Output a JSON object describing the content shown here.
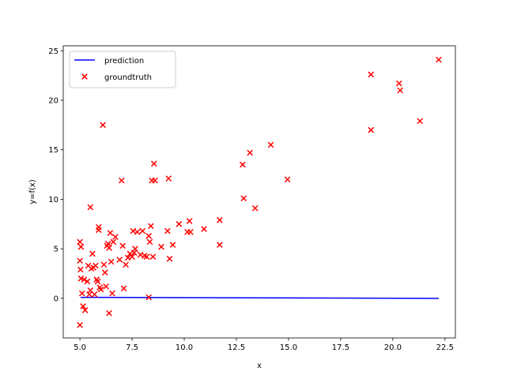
{
  "chart_data": {
    "type": "scatter",
    "title": "",
    "xlabel": "x",
    "ylabel": "y=f(x)",
    "xlim": [
      4.2,
      23.0
    ],
    "ylim": [
      -4.0,
      25.5
    ],
    "xticks": [
      5.0,
      7.5,
      10.0,
      12.5,
      15.0,
      17.5,
      20.0,
      22.5
    ],
    "xtick_labels": [
      "5.0",
      "7.5",
      "10.0",
      "12.5",
      "15.0",
      "17.5",
      "20.0",
      "22.5"
    ],
    "yticks": [
      0,
      5,
      10,
      15,
      20,
      25
    ],
    "ytick_labels": [
      "0",
      "5",
      "10",
      "15",
      "20",
      "25"
    ],
    "grid": false,
    "legend_position": "top-left",
    "series": [
      {
        "name": "prediction",
        "kind": "line",
        "color": "#0000ff",
        "x": [
          5.03,
          22.2
        ],
        "y": [
          0.1,
          0.0
        ]
      },
      {
        "name": "groundtruth",
        "kind": "scatter",
        "marker": "x",
        "color": "#ff0000",
        "points": [
          [
            5.0,
            5.7
          ],
          [
            5.05,
            5.2
          ],
          [
            5.0,
            3.8
          ],
          [
            5.03,
            2.9
          ],
          [
            5.05,
            2.0
          ],
          [
            5.0,
            -2.7
          ],
          [
            5.1,
            0.5
          ],
          [
            5.15,
            -0.8
          ],
          [
            5.25,
            -1.2
          ],
          [
            5.2,
            1.9
          ],
          [
            5.35,
            1.7
          ],
          [
            5.4,
            3.3
          ],
          [
            5.45,
            0.4
          ],
          [
            5.5,
            0.8
          ],
          [
            5.55,
            3.0
          ],
          [
            5.5,
            9.2
          ],
          [
            5.6,
            4.5
          ],
          [
            5.65,
            3.1
          ],
          [
            5.7,
            0.4
          ],
          [
            5.75,
            3.3
          ],
          [
            5.8,
            1.9
          ],
          [
            5.85,
            1.7
          ],
          [
            5.9,
            7.2
          ],
          [
            5.9,
            6.9
          ],
          [
            5.95,
            1.1
          ],
          [
            6.0,
            0.9
          ],
          [
            6.1,
            17.5
          ],
          [
            6.15,
            3.4
          ],
          [
            6.2,
            2.6
          ],
          [
            6.25,
            1.2
          ],
          [
            6.3,
            5.3
          ],
          [
            6.35,
            5.5
          ],
          [
            6.4,
            5.1
          ],
          [
            6.4,
            -1.5
          ],
          [
            6.45,
            6.6
          ],
          [
            6.5,
            3.7
          ],
          [
            6.55,
            0.5
          ],
          [
            6.6,
            5.7
          ],
          [
            6.7,
            6.2
          ],
          [
            6.9,
            3.9
          ],
          [
            7.0,
            11.9
          ],
          [
            7.05,
            5.3
          ],
          [
            7.1,
            1.0
          ],
          [
            7.2,
            3.4
          ],
          [
            7.3,
            4.1
          ],
          [
            7.4,
            4.5
          ],
          [
            7.5,
            4.2
          ],
          [
            7.55,
            6.8
          ],
          [
            7.6,
            4.6
          ],
          [
            7.65,
            5.0
          ],
          [
            7.75,
            6.7
          ],
          [
            7.9,
            4.4
          ],
          [
            8.0,
            6.8
          ],
          [
            8.1,
            4.3
          ],
          [
            8.2,
            4.2
          ],
          [
            8.3,
            6.3
          ],
          [
            8.35,
            5.7
          ],
          [
            8.3,
            0.1
          ],
          [
            8.4,
            7.3
          ],
          [
            8.45,
            11.9
          ],
          [
            8.5,
            4.2
          ],
          [
            8.55,
            13.6
          ],
          [
            8.6,
            11.9
          ],
          [
            8.9,
            5.2
          ],
          [
            9.2,
            6.8
          ],
          [
            9.25,
            12.1
          ],
          [
            9.3,
            4.0
          ],
          [
            9.45,
            5.4
          ],
          [
            9.75,
            7.5
          ],
          [
            10.15,
            6.7
          ],
          [
            10.25,
            7.8
          ],
          [
            10.3,
            6.7
          ],
          [
            10.95,
            7.0
          ],
          [
            11.7,
            7.9
          ],
          [
            11.7,
            5.4
          ],
          [
            12.8,
            13.5
          ],
          [
            12.85,
            10.1
          ],
          [
            13.15,
            14.7
          ],
          [
            13.4,
            9.1
          ],
          [
            14.15,
            15.5
          ],
          [
            14.95,
            12.0
          ],
          [
            18.95,
            22.6
          ],
          [
            18.95,
            17.0
          ],
          [
            20.3,
            21.7
          ],
          [
            20.35,
            21.0
          ],
          [
            21.3,
            17.9
          ],
          [
            22.2,
            24.1
          ]
        ]
      }
    ]
  }
}
